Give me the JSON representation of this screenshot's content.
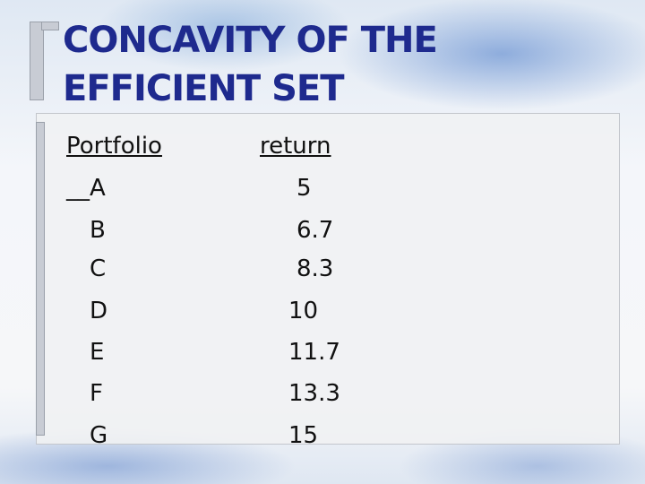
{
  "title": {
    "line1": "CONCAVITY OF THE",
    "line2": "EFFICIENT SET"
  },
  "table": {
    "headers": [
      "Portfolio",
      "return"
    ],
    "rows": [
      [
        "__A",
        5
      ],
      [
        "B",
        6.7
      ],
      [
        "C",
        8.3
      ],
      [
        "D",
        10
      ],
      [
        "E",
        11.7
      ],
      [
        "F",
        13.3
      ],
      [
        "G",
        15
      ]
    ]
  }
}
